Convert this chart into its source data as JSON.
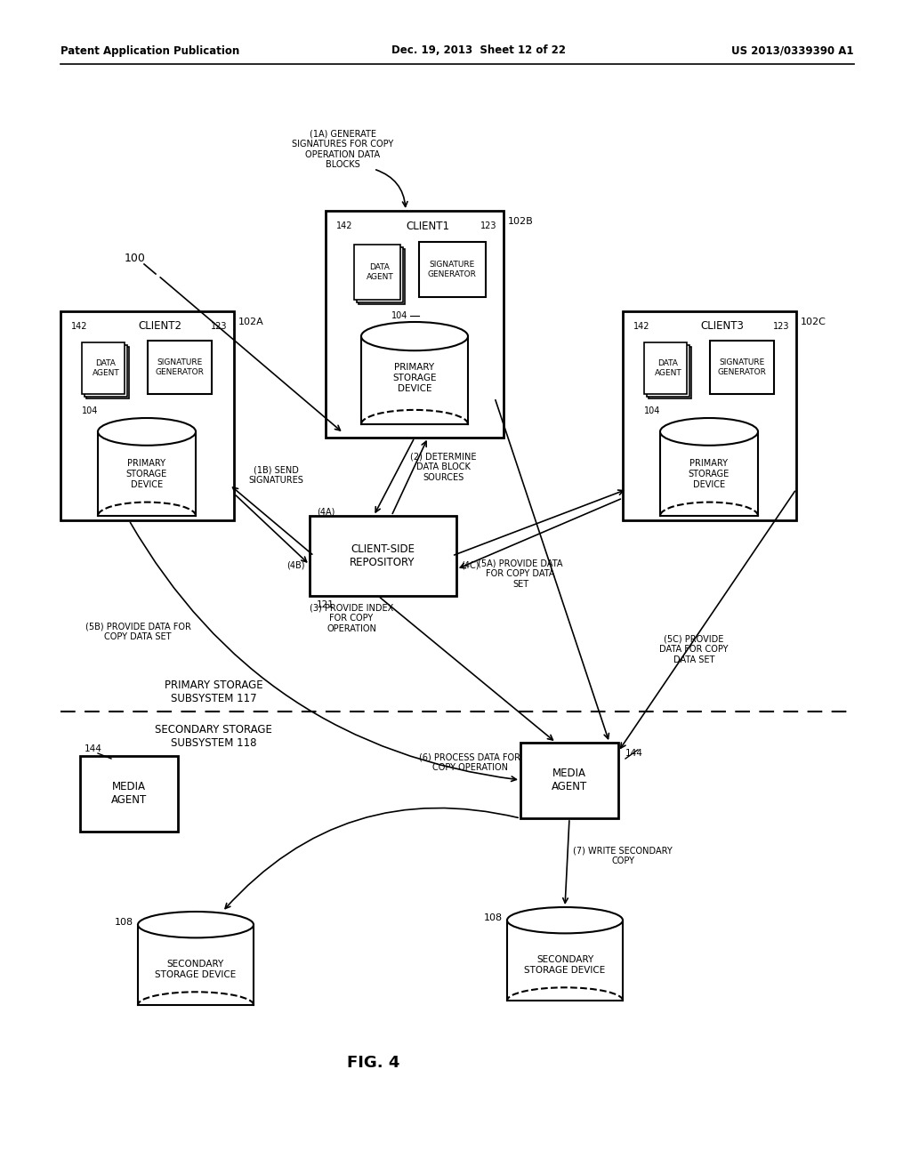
{
  "header_left": "Patent Application Publication",
  "header_mid": "Dec. 19, 2013  Sheet 12 of 22",
  "header_right": "US 2013/0339390 A1",
  "fig_label": "FIG. 4",
  "bg_color": "#ffffff",
  "text_color": "#000000",
  "label_100": "100",
  "label_102A": "102A",
  "label_102B": "102B",
  "label_102C": "102C",
  "label_142": "142",
  "label_123": "123",
  "label_104": "104",
  "label_121": "121",
  "label_144_left": "144",
  "label_144_right": "144",
  "label_108a": "108",
  "label_108b": "108",
  "client1_title": "CLIENT1",
  "client2_title": "CLIENT2",
  "client3_title": "CLIENT3",
  "data_agent": "DATA\nAGENT",
  "sig_gen": "SIGNATURE\nGENERATOR",
  "prim_storage": "PRIMARY\nSTORAGE\nDEVICE",
  "client_side_repo": "CLIENT-SIDE\nREPOSITORY",
  "media_agent_left": "MEDIA\nAGENT",
  "media_agent_right": "MEDIA\nAGENT",
  "sec_storage_a": "SECONDARY\nSTORAGE DEVICE",
  "sec_storage_b": "SECONDARY\nSTORAGE DEVICE",
  "primary_subsystem": "PRIMARY STORAGE\nSUBSYSTEM 117",
  "secondary_subsystem": "SECONDARY STORAGE\nSUBSYSTEM 118",
  "ann_1a": "(1A) GENERATE\nSIGNATURES FOR COPY\nOPERATION DATA\nBLOCKS",
  "ann_1b": "(1B) SEND\nSIGNATURES",
  "ann_2": "(2) DETERMINE\nDATA BLOCK\nSOURCES",
  "ann_3": "(3) PROVIDE INDEX\nFOR COPY\nOPERATION",
  "ann_4a": "(4A)",
  "ann_4b": "(4B)",
  "ann_4c": "(4C)",
  "ann_5a": "(5A) PROVIDE DATA\nFOR COPY DATA\nSET",
  "ann_5b": "(5B) PROVIDE DATA FOR\nCOPY DATA SET",
  "ann_5c": "(5C) PROVIDE\nDATA FOR COPY\nDATA SET",
  "ann_6": "(6) PROCESS DATA FOR\nCOPY OPERATION",
  "ann_7": "(7) WRITE SECONDARY\nCOPY"
}
